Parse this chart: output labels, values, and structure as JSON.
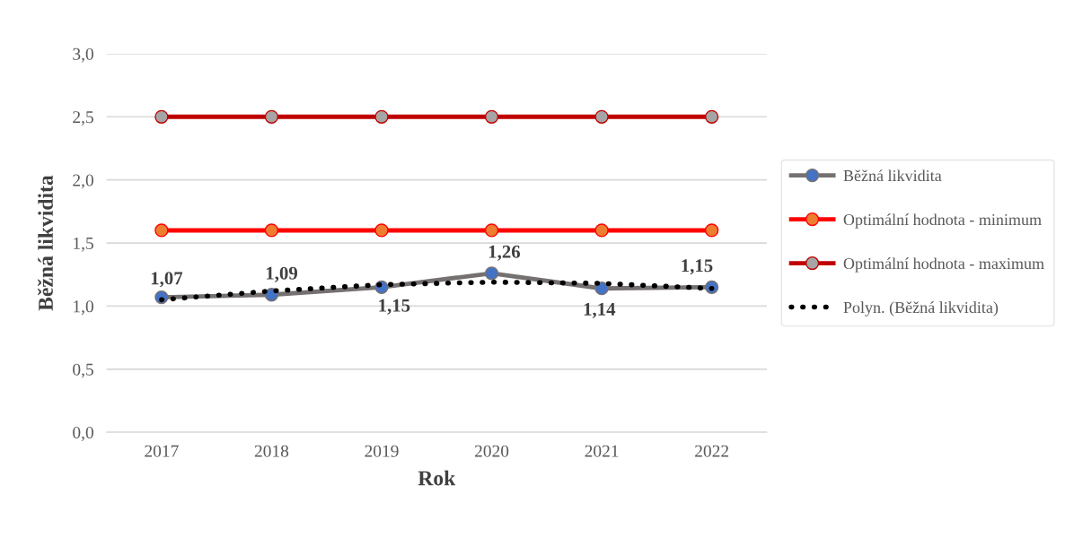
{
  "chart_data": {
    "type": "line",
    "xlabel": "Rok",
    "ylabel": "Běžná likvidita",
    "categories": [
      "2017",
      "2018",
      "2019",
      "2020",
      "2021",
      "2022"
    ],
    "series": [
      {
        "name": "Běžná likvidita",
        "color": "#767171",
        "colors": [
          "#4472c4",
          "#4472c4",
          "#4472c4",
          "#4472c4",
          "#4472c4",
          "#4472c4"
        ],
        "values": [
          1.07,
          1.09,
          1.15,
          1.26,
          1.14,
          1.15
        ],
        "value_labels": [
          "1,07",
          "1,09",
          "1,15",
          "1,26",
          "1,14",
          "1,15"
        ],
        "marker": "circle",
        "line_style": "solid"
      },
      {
        "name": "Optimální hodnota - minimum",
        "color": "#ff0000",
        "colors": [
          "#ed7d31",
          "#ed7d31",
          "#ed7d31",
          "#ed7d31",
          "#ed7d31",
          "#ed7d31"
        ],
        "values": [
          1.6,
          1.6,
          1.6,
          1.6,
          1.6,
          1.6
        ],
        "marker": "circle",
        "line_style": "solid"
      },
      {
        "name": "Optimální hodnota - maximum",
        "color": "#c00000",
        "colors": [
          "#a5a5a5",
          "#a5a5a5",
          "#a5a5a5",
          "#a5a5a5",
          "#a5a5a5",
          "#a5a5a5"
        ],
        "values": [
          2.5,
          2.5,
          2.5,
          2.5,
          2.5,
          2.5
        ],
        "marker": "circle",
        "line_style": "solid"
      },
      {
        "name": "Polyn. (Běžná likvidita)",
        "color": "#000000",
        "values": [
          1.05,
          1.12,
          1.17,
          1.19,
          1.18,
          1.14
        ],
        "marker": "none",
        "line_style": "dotted"
      }
    ],
    "ylim": [
      0,
      3
    ],
    "yticks": [
      {
        "value": 0,
        "label": "0,0"
      },
      {
        "value": 0.5,
        "label": "0,5"
      },
      {
        "value": 1,
        "label": "1,0"
      },
      {
        "value": 1.5,
        "label": "1,5"
      },
      {
        "value": 2,
        "label": "2,0"
      },
      {
        "value": 2.5,
        "label": "2,5"
      },
      {
        "value": 3,
        "label": "3,0"
      }
    ],
    "grid": "y",
    "legend": "right"
  }
}
